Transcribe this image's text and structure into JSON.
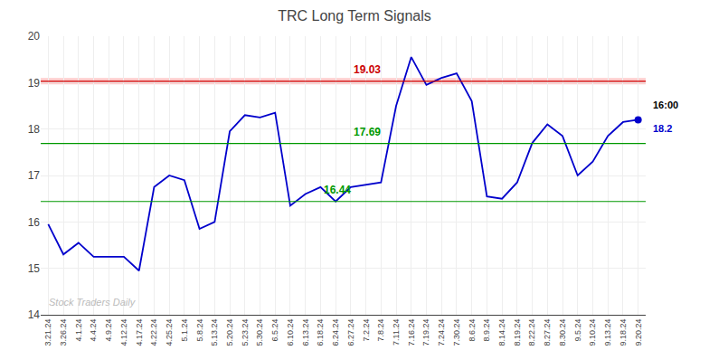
{
  "chart_data": {
    "type": "line",
    "title": "TRC Long Term Signals",
    "categories": [
      "3.21.24",
      "3.26.24",
      "4.1.24",
      "4.4.24",
      "4.9.24",
      "4.12.24",
      "4.17.24",
      "4.22.24",
      "4.25.24",
      "5.1.24",
      "5.8.24",
      "5.13.24",
      "5.20.24",
      "5.23.24",
      "5.30.24",
      "6.5.24",
      "6.10.24",
      "6.13.24",
      "6.18.24",
      "6.24.24",
      "6.27.24",
      "7.2.24",
      "7.8.24",
      "7.11.24",
      "7.16.24",
      "7.19.24",
      "7.24.24",
      "7.30.24",
      "8.6.24",
      "8.9.24",
      "8.14.24",
      "8.19.24",
      "8.22.24",
      "8.27.24",
      "8.30.24",
      "9.5.24",
      "9.10.24",
      "9.13.24",
      "9.18.24",
      "9.20.24"
    ],
    "values": [
      15.95,
      15.3,
      15.55,
      15.25,
      15.25,
      15.25,
      14.95,
      16.75,
      17.0,
      16.9,
      15.85,
      16.0,
      17.95,
      18.3,
      18.25,
      18.35,
      16.35,
      16.6,
      16.75,
      16.44,
      16.75,
      16.8,
      16.85,
      18.5,
      19.55,
      18.95,
      19.1,
      19.2,
      18.6,
      16.55,
      16.5,
      16.85,
      17.7,
      18.1,
      17.85,
      17.0,
      17.3,
      17.85,
      18.15,
      18.2
    ],
    "color": "#0000cc",
    "ylim": [
      14,
      20
    ],
    "yticks": [
      14,
      15,
      16,
      17,
      18,
      19,
      20
    ],
    "grid": true,
    "hlines": [
      {
        "value": 19.03,
        "color": "#cc0000",
        "band_color": "#ffcccc"
      },
      {
        "value": 17.69,
        "color": "#009900"
      },
      {
        "value": 16.44,
        "color": "#009900"
      }
    ],
    "last_point": {
      "time": "16:00",
      "value": 18.2
    },
    "watermark": "Stock Traders Daily"
  }
}
